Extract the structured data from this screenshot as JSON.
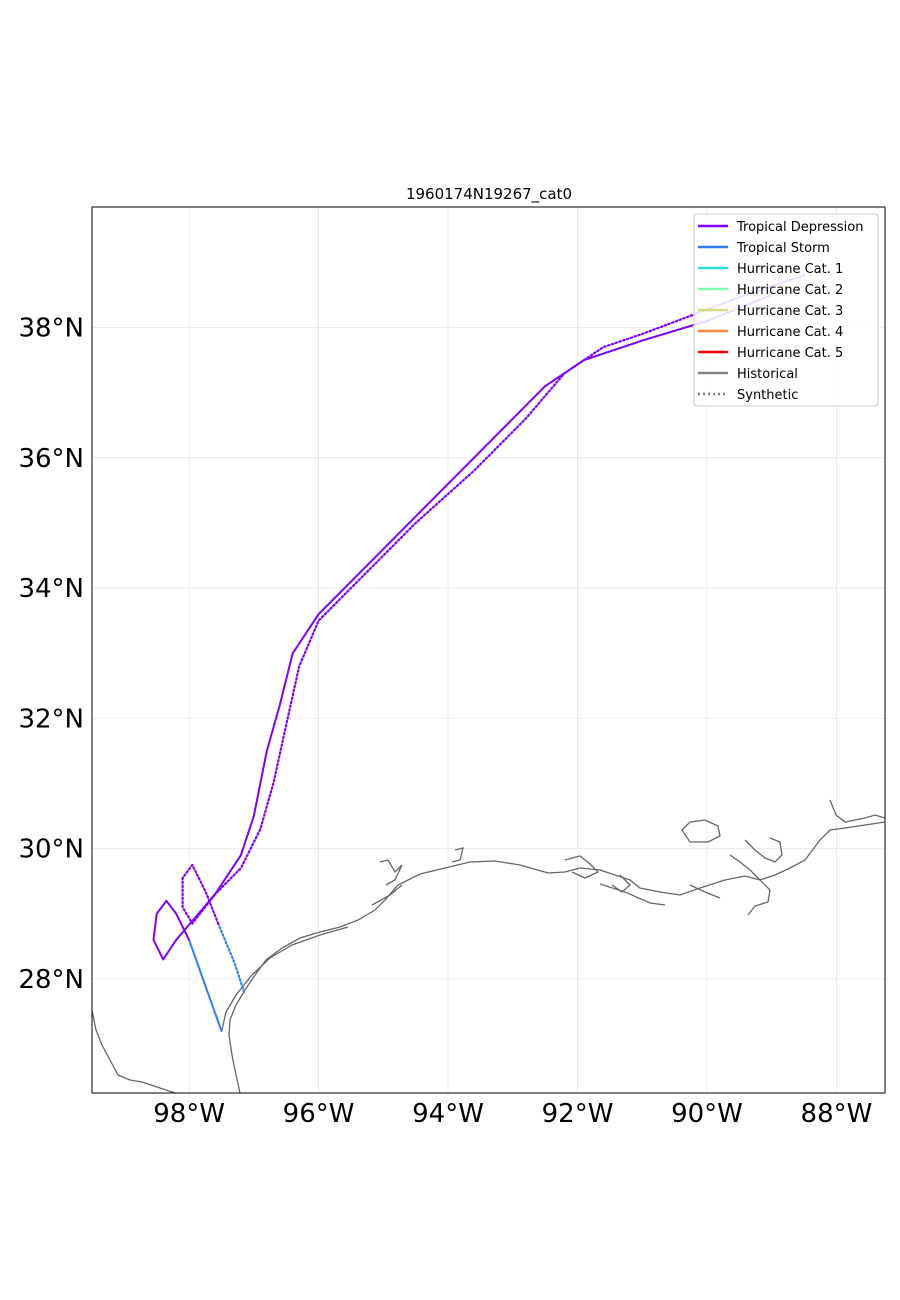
{
  "title": "1960174N19267_cat0",
  "map": {
    "lon_range": [
      -99.5,
      -87.25
    ],
    "lat_range": [
      26.25,
      39.85
    ],
    "x_ticks": [
      {
        "value": -98,
        "label": "98°W"
      },
      {
        "value": -96,
        "label": "96°W"
      },
      {
        "value": -94,
        "label": "94°W"
      },
      {
        "value": -92,
        "label": "92°W"
      },
      {
        "value": -90,
        "label": "90°W"
      },
      {
        "value": -88,
        "label": "88°W"
      }
    ],
    "y_ticks": [
      {
        "value": 28,
        "label": "28°N"
      },
      {
        "value": 30,
        "label": "30°N"
      },
      {
        "value": 32,
        "label": "32°N"
      },
      {
        "value": 34,
        "label": "34°N"
      },
      {
        "value": 36,
        "label": "36°N"
      },
      {
        "value": 38,
        "label": "38°N"
      }
    ],
    "grid": true,
    "coastline_color": "#666666"
  },
  "legend": {
    "placement": "top-right",
    "items": [
      {
        "label": "Tropical Depression",
        "color": "#7f00ff",
        "style": "solid"
      },
      {
        "label": "Tropical Storm",
        "color": "#2c7ef7",
        "style": "solid"
      },
      {
        "label": "Hurricane Cat. 1",
        "color": "#2adddd",
        "style": "solid"
      },
      {
        "label": "Hurricane Cat. 2",
        "color": "#80ffb4",
        "style": "solid"
      },
      {
        "label": "Hurricane Cat. 3",
        "color": "#d4dd80",
        "style": "solid"
      },
      {
        "label": "Hurricane Cat. 4",
        "color": "#ff8147",
        "style": "solid"
      },
      {
        "label": "Hurricane Cat. 5",
        "color": "#ff0000",
        "style": "solid"
      },
      {
        "label": "Historical",
        "color": "#808080",
        "style": "solid"
      },
      {
        "label": "Synthetic",
        "color": "#808080",
        "style": "dotted"
      }
    ]
  },
  "chart_data": {
    "type": "line",
    "x_axis": "longitude",
    "y_axis": "latitude",
    "xlim": [
      -99.5,
      -87.25
    ],
    "ylim": [
      26.25,
      39.85
    ],
    "grid": true,
    "legend_placement": "top-right",
    "series": [
      {
        "name": "Historical",
        "style": "solid",
        "segments": [
          {
            "category": "Tropical Storm",
            "color": "#2c7ef7",
            "points": [
              [
                -97.5,
                27.2
              ],
              [
                -98.0,
                28.6
              ]
            ]
          },
          {
            "category": "Tropical Depression",
            "color": "#7f00ff",
            "points": [
              [
                -98.0,
                28.6
              ],
              [
                -98.2,
                29.0
              ],
              [
                -98.35,
                29.2
              ],
              [
                -98.5,
                29.0
              ],
              [
                -98.55,
                28.6
              ],
              [
                -98.4,
                28.3
              ],
              [
                -98.2,
                28.6
              ],
              [
                -97.9,
                28.95
              ],
              [
                -97.6,
                29.3
              ],
              [
                -97.2,
                29.9
              ],
              [
                -97.0,
                30.5
              ],
              [
                -96.8,
                31.5
              ],
              [
                -96.6,
                32.2
              ],
              [
                -96.4,
                33.0
              ],
              [
                -96.0,
                33.6
              ],
              [
                -95.3,
                34.3
              ],
              [
                -94.5,
                35.1
              ],
              [
                -93.7,
                35.9
              ],
              [
                -93.0,
                36.6
              ],
              [
                -92.5,
                37.1
              ],
              [
                -91.9,
                37.5
              ],
              [
                -91.0,
                37.8
              ],
              [
                -90.0,
                38.1
              ],
              [
                -89.0,
                38.5
              ]
            ]
          }
        ]
      },
      {
        "name": "Synthetic",
        "style": "dotted",
        "segments": [
          {
            "category": "Tropical Storm",
            "color": "#2c7ef7",
            "points": [
              [
                -97.15,
                27.8
              ],
              [
                -97.3,
                28.25
              ],
              [
                -97.55,
                28.85
              ]
            ]
          },
          {
            "category": "Tropical Depression",
            "color": "#7f00ff",
            "points": [
              [
                -97.55,
                28.85
              ],
              [
                -97.75,
                29.35
              ],
              [
                -97.95,
                29.75
              ],
              [
                -98.1,
                29.55
              ],
              [
                -98.1,
                29.1
              ],
              [
                -97.95,
                28.85
              ],
              [
                -97.6,
                29.3
              ],
              [
                -97.2,
                29.7
              ],
              [
                -96.9,
                30.3
              ],
              [
                -96.7,
                31.0
              ],
              [
                -96.5,
                31.9
              ],
              [
                -96.3,
                32.8
              ],
              [
                -96.0,
                33.5
              ],
              [
                -95.3,
                34.2
              ],
              [
                -94.5,
                35.0
              ],
              [
                -93.6,
                35.8
              ],
              [
                -92.8,
                36.6
              ],
              [
                -92.2,
                37.3
              ],
              [
                -91.6,
                37.7
              ],
              [
                -91.0,
                37.9
              ],
              [
                -90.2,
                38.2
              ],
              [
                -89.4,
                38.5
              ],
              [
                -88.5,
                38.8
              ]
            ]
          }
        ]
      }
    ]
  }
}
